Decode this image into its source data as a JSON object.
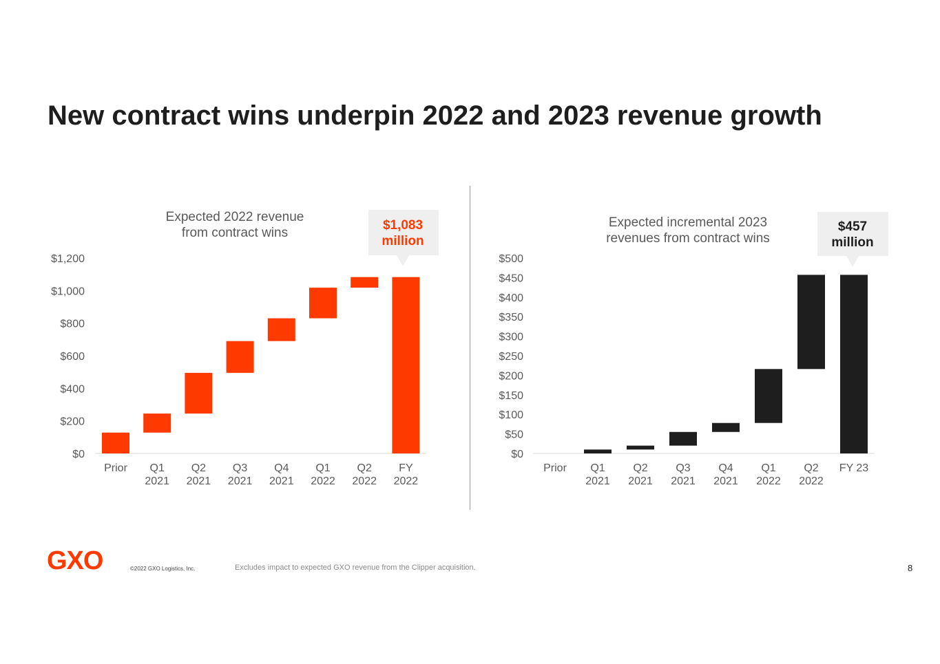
{
  "slide": {
    "title": "New contract wins underpin 2022 and 2023 revenue growth",
    "copyright": "©2022 GXO Logistics, Inc.",
    "footnote": "Excludes impact to expected GXO revenue from the Clipper acquisition.",
    "page_number": "8",
    "logo_text": "GXO",
    "brand_color": "#ff3a00",
    "dark_color": "#1e1e1e"
  },
  "chart_data": [
    {
      "type": "bar",
      "subtype": "waterfall",
      "title": "Expected 2022 revenue\nfrom contract wins",
      "callout": "$1,083\nmillion",
      "categories": [
        "Prior",
        "Q1\n2021",
        "Q2\n2021",
        "Q3\n2021",
        "Q4\n2021",
        "Q1\n2022",
        "Q2\n2022",
        "FY\n2022"
      ],
      "series": [
        {
          "bar_start": [
            0,
            128,
            245,
            495,
            690,
            830,
            1018,
            0
          ],
          "bar_end": [
            128,
            245,
            495,
            690,
            830,
            1018,
            1083,
            1083
          ]
        }
      ],
      "yticks": [
        "$0",
        "$200",
        "$400",
        "$600",
        "$800",
        "$1,000",
        "$1,200"
      ],
      "ylim": [
        0,
        1200
      ],
      "grid": false,
      "bar_color": "#ff3a00"
    },
    {
      "type": "bar",
      "subtype": "waterfall",
      "title": "Expected incremental 2023\nrevenues from contract wins",
      "callout": "$457\nmillion",
      "categories": [
        "Prior",
        "Q1\n2021",
        "Q2\n2021",
        "Q3\n2021",
        "Q4\n2021",
        "Q1\n2022",
        "Q2\n2022",
        "FY 23"
      ],
      "series": [
        {
          "bar_start": [
            0,
            0,
            10,
            20,
            55,
            78,
            216,
            0
          ],
          "bar_end": [
            0,
            10,
            20,
            55,
            78,
            216,
            457,
            457
          ]
        }
      ],
      "yticks": [
        "$0",
        "$50",
        "$100",
        "$150",
        "$200",
        "$250",
        "$300",
        "$350",
        "$400",
        "$450",
        "$500"
      ],
      "ylim": [
        0,
        500
      ],
      "grid": false,
      "bar_color": "#1e1e1e"
    }
  ]
}
